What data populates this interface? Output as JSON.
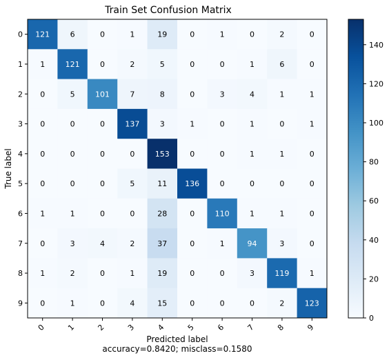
{
  "chart_data": {
    "type": "heatmap",
    "title": "Train Set Confusion Matrix",
    "xlabel": "Predicted label",
    "ylabel": "True label",
    "footer": "accuracy=0.8420; misclass=0.1580",
    "x_ticks": [
      "0",
      "1",
      "2",
      "3",
      "4",
      "5",
      "6",
      "7",
      "8",
      "9"
    ],
    "y_ticks": [
      "0",
      "1",
      "2",
      "3",
      "4",
      "5",
      "6",
      "7",
      "8",
      "9"
    ],
    "colormap": "Blues",
    "color_range": [
      0,
      153
    ],
    "matrix": [
      [
        121,
        6,
        0,
        1,
        19,
        0,
        1,
        0,
        2,
        0
      ],
      [
        1,
        121,
        0,
        2,
        5,
        0,
        0,
        1,
        6,
        0
      ],
      [
        0,
        5,
        101,
        7,
        8,
        0,
        3,
        4,
        1,
        1
      ],
      [
        0,
        0,
        0,
        137,
        3,
        1,
        0,
        1,
        0,
        1
      ],
      [
        0,
        0,
        0,
        0,
        153,
        0,
        0,
        1,
        1,
        0
      ],
      [
        0,
        0,
        0,
        5,
        11,
        136,
        0,
        0,
        0,
        0
      ],
      [
        1,
        1,
        0,
        0,
        28,
        0,
        110,
        1,
        1,
        0
      ],
      [
        0,
        3,
        4,
        2,
        37,
        0,
        1,
        94,
        3,
        0
      ],
      [
        1,
        2,
        0,
        1,
        19,
        0,
        0,
        3,
        119,
        1
      ],
      [
        0,
        1,
        0,
        4,
        15,
        0,
        0,
        0,
        2,
        123
      ]
    ],
    "colorbar_ticks": [
      "0",
      "20",
      "40",
      "60",
      "80",
      "100",
      "120",
      "140"
    ],
    "colorbar_tick_values": [
      0,
      20,
      40,
      60,
      80,
      100,
      120,
      140
    ],
    "text_color_threshold": 76.5,
    "text_color_dark": "#000000",
    "text_color_light": "#ffffff"
  }
}
